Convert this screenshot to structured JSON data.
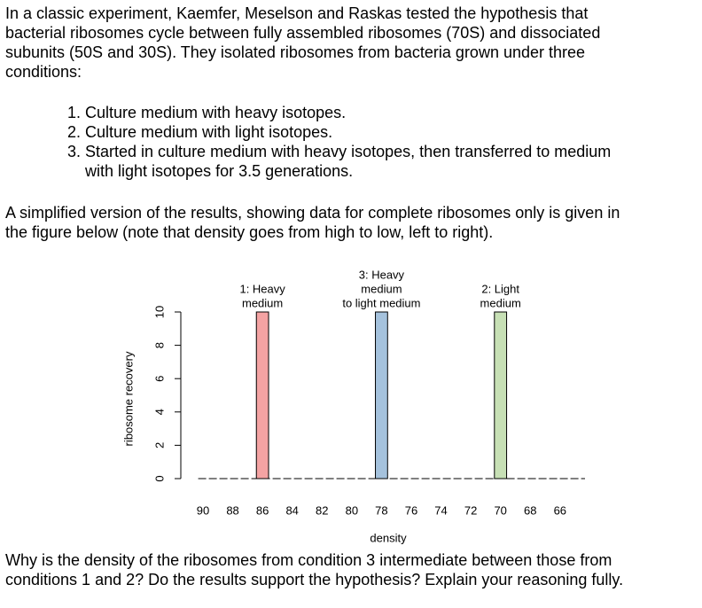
{
  "intro": {
    "lines": [
      "In a classic experiment, Kaemfer, Meselson and Raskas tested the hypothesis that",
      "bacterial ribosomes cycle between fully assembled ribosomes (70S) and dissociated",
      "subunits (50S and 30S). They isolated ribosomes from bacteria grown under three",
      "conditions:"
    ]
  },
  "conditions": [
    [
      "Culture medium with heavy isotopes."
    ],
    [
      "Culture medium with light isotopes."
    ],
    [
      "Started in culture medium with heavy isotopes, then transferred to medium",
      "with light isotopes for 3.5 generations."
    ]
  ],
  "results": {
    "lines": [
      "A simplified version of the results, showing data for complete ribosomes only is given in",
      "the figure below (note that density goes from high to low, left to right)."
    ]
  },
  "chart_data": {
    "type": "bar",
    "x": [
      86,
      78,
      70
    ],
    "values": [
      10,
      10,
      10
    ],
    "colors": [
      "#f4a3a3",
      "#a5c2dd",
      "#c7e0b5"
    ],
    "bar_labels": [
      [
        "1: Heavy",
        "medium"
      ],
      [
        "3: Heavy",
        "medium",
        "to light medium"
      ],
      [
        "2: Light",
        "medium"
      ]
    ],
    "xlabel": "density",
    "ylabel": "ribosome recovery",
    "xlim": [
      90.5,
      64.5
    ],
    "ylim": [
      0,
      10
    ],
    "xticks": [
      90,
      88,
      86,
      84,
      82,
      80,
      78,
      76,
      74,
      72,
      70,
      68,
      66
    ],
    "yticks": [
      0,
      2,
      4,
      6,
      8,
      10
    ]
  },
  "question": {
    "lines": [
      "Why is the density of the ribosomes from condition 3 intermediate between those from",
      "conditions 1 and 2? Do the results support the hypothesis? Explain your reasoning fully."
    ]
  }
}
